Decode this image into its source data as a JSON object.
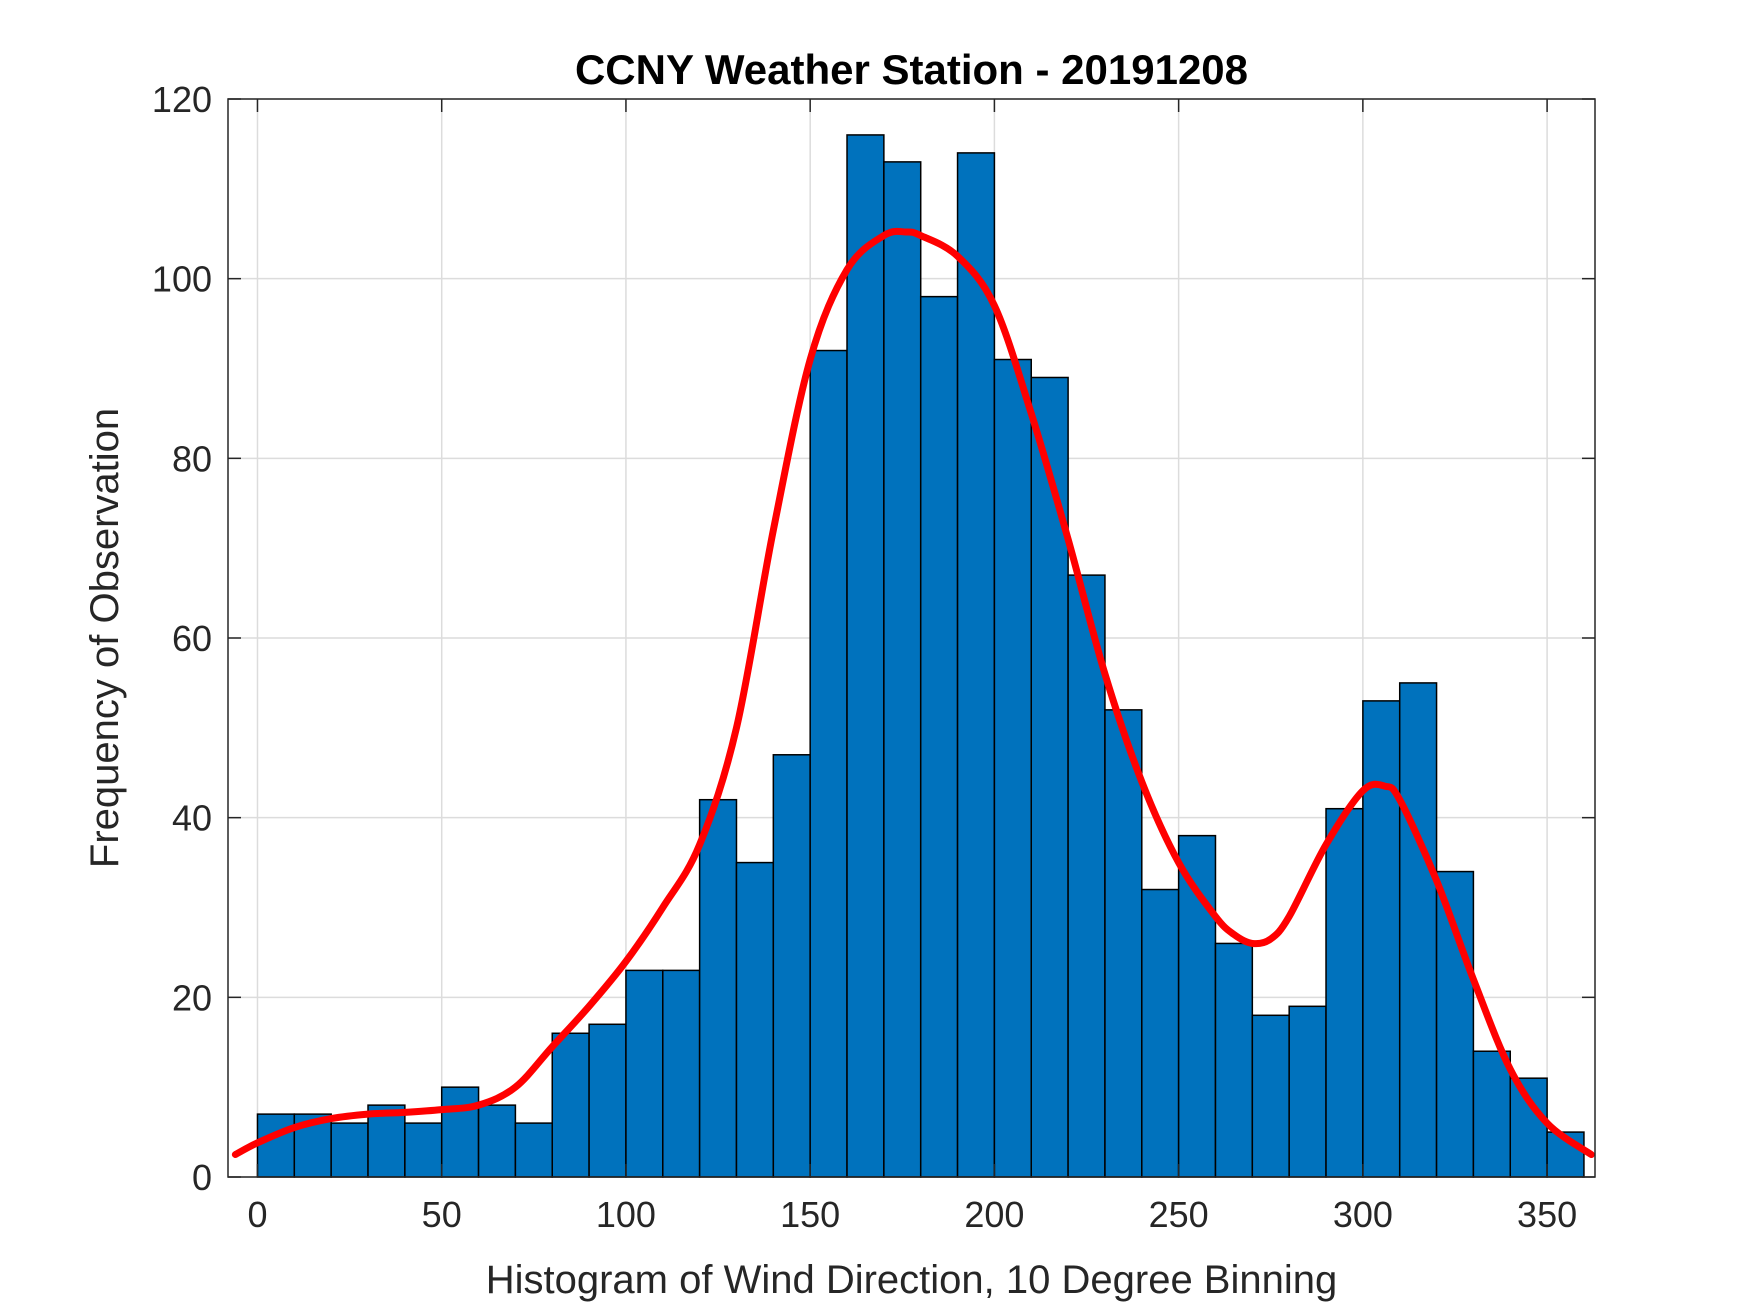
{
  "chart_data": {
    "type": "bar",
    "title": "CCNY Weather Station - 20191208",
    "xlabel": "Histogram of Wind Direction, 10 Degree Binning",
    "ylabel": "Frequency of Observation",
    "xlim": [
      -8,
      363
    ],
    "ylim": [
      0,
      120
    ],
    "xticks": [
      0,
      50,
      100,
      150,
      200,
      250,
      300,
      350
    ],
    "yticks": [
      0,
      20,
      40,
      60,
      80,
      100,
      120
    ],
    "grid": true,
    "bin_width": 10,
    "bin_edges": [
      0,
      10,
      20,
      30,
      40,
      50,
      60,
      70,
      80,
      90,
      100,
      110,
      120,
      130,
      140,
      150,
      160,
      170,
      180,
      190,
      200,
      210,
      220,
      230,
      240,
      250,
      260,
      270,
      280,
      290,
      300,
      310,
      320,
      330,
      340,
      350,
      360
    ],
    "values": [
      7,
      7,
      6,
      8,
      6,
      10,
      8,
      6,
      16,
      17,
      23,
      23,
      42,
      35,
      47,
      92,
      116,
      113,
      98,
      114,
      91,
      89,
      67,
      52,
      32,
      38,
      26,
      18,
      19,
      41,
      53,
      55,
      34,
      14,
      11,
      5
    ],
    "bar_color": "#0072BD",
    "fit_curve": {
      "color": "#FF0000",
      "x": [
        -6,
        0,
        10,
        20,
        30,
        40,
        50,
        60,
        70,
        80,
        90,
        100,
        110,
        120,
        130,
        140,
        150,
        160,
        170,
        176,
        180,
        190,
        200,
        210,
        220,
        230,
        240,
        250,
        260,
        265,
        270,
        275,
        280,
        290,
        300,
        306,
        310,
        320,
        330,
        340,
        350,
        362
      ],
      "y": [
        2.5,
        3.8,
        5.5,
        6.5,
        7,
        7.2,
        7.5,
        8,
        10,
        14.5,
        19,
        24,
        30,
        37,
        50,
        72,
        91,
        101,
        104.8,
        105.2,
        104.8,
        102.5,
        97,
        85,
        71,
        56,
        44,
        35,
        29,
        27,
        26,
        26.5,
        29,
        37,
        43,
        43.5,
        42,
        33,
        22,
        12,
        6,
        2.5
      ]
    }
  }
}
